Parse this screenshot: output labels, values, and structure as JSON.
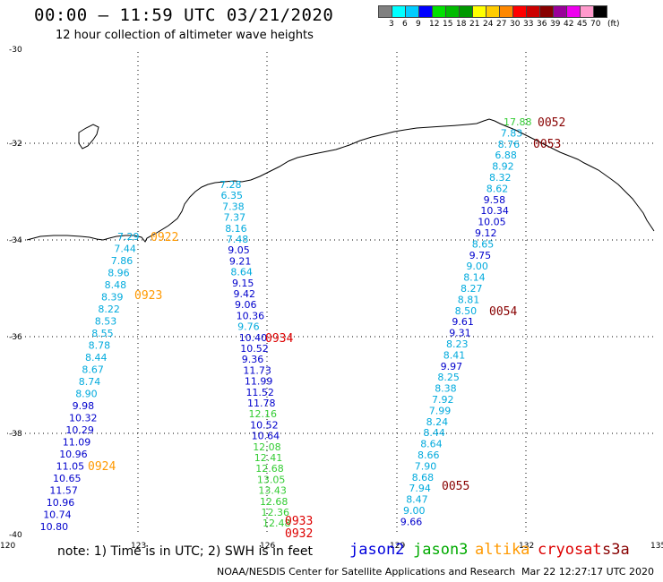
{
  "title": "00:00 – 11:59 UTC 03/21/2020",
  "subtitle": "12 hour collection of altimeter wave heights",
  "legend": {
    "unit": "(ft)",
    "colors": [
      "#808080",
      "#00ffff",
      "#00ccff",
      "#0000ff",
      "#00e000",
      "#00bb00",
      "#009900",
      "#ffff00",
      "#ffcc00",
      "#ff8800",
      "#ff0000",
      "#cc0000",
      "#880000",
      "#990099",
      "#ee00ee",
      "#ff99cc",
      "#000000"
    ],
    "labels": [
      "3",
      "6",
      "9",
      "12",
      "15",
      "18",
      "21",
      "24",
      "27",
      "30",
      "33",
      "36",
      "39",
      "42",
      "45",
      "70"
    ]
  },
  "axes": {
    "y_ticks": [
      "-30",
      "-32",
      "-34",
      "-36",
      "-38",
      "-40"
    ],
    "x_ticks": [
      "120",
      "123",
      "126",
      "129",
      "132",
      "135"
    ]
  },
  "tracks": [
    {
      "color": "#00aadd",
      "values": [
        "7.28",
        "6.35",
        "7.38",
        "7.37",
        "8.16",
        "7.48"
      ]
    },
    {
      "color": "#0000cc",
      "values": [
        "9.05",
        "9.21"
      ]
    },
    {
      "color": "#00aadd",
      "values": [
        "8.64"
      ]
    },
    {
      "color": "#0000cc",
      "values": [
        "9.15",
        "9.42",
        "9.06",
        "10.36"
      ]
    },
    {
      "color": "#00aadd",
      "values": [
        "9.76"
      ]
    },
    {
      "color": "#0000cc",
      "values": [
        "10.40",
        "10.52",
        "9.36",
        "11.73",
        "11.99",
        "11.52",
        "11.78"
      ]
    },
    {
      "color": "#33cc33",
      "values": [
        "12.16"
      ]
    },
    {
      "color": "#0000cc",
      "values": [
        "10.52",
        "10.64"
      ]
    },
    {
      "color": "#33cc33",
      "values": [
        "12.08",
        "12.41",
        "12.68",
        "13.05",
        "13.43",
        "12.68",
        "12.36",
        "12.48"
      ]
    }
  ],
  "track_left": {
    "color_cyan": "#00aadd",
    "color_blue": "#0000cc",
    "values": [
      "7.29",
      "7.44",
      "7.86",
      "8.96",
      "8.48",
      "8.39",
      "8.22",
      "8.53",
      "8.55",
      "8.78",
      "8.44",
      "8.67",
      "8.74",
      "8.90",
      "9.98",
      "10.32",
      "10.29",
      "11.09",
      "10.96",
      "11.05",
      "10.65",
      "11.57",
      "10.96",
      "10.74",
      "10.80"
    ],
    "colors": [
      "c",
      "c",
      "c",
      "c",
      "c",
      "c",
      "c",
      "c",
      "c",
      "c",
      "c",
      "c",
      "c",
      "c",
      "b",
      "b",
      "b",
      "b",
      "b",
      "b",
      "b",
      "b",
      "b",
      "b",
      "b"
    ]
  },
  "track_right": {
    "values": [
      "17.88",
      "7.83",
      "8.76",
      "6.88",
      "8.92",
      "8.32",
      "8.62",
      "9.58",
      "10.34",
      "10.05",
      "9.12",
      "8.65",
      "9.75",
      "9.00",
      "8.14",
      "8.27",
      "8.81",
      "8.50",
      "9.61",
      "9.31",
      "8.23",
      "8.41",
      "9.97",
      "8.25",
      "8.38",
      "7.92",
      "7.99",
      "8.24",
      "8.44",
      "8.64",
      "8.66",
      "7.90",
      "8.68",
      "7.94",
      "8.47",
      "9.00",
      "9.66"
    ],
    "colors": [
      "g",
      "c",
      "c",
      "c",
      "c",
      "c",
      "c",
      "b",
      "b",
      "b",
      "b",
      "c",
      "b",
      "c",
      "c",
      "c",
      "c",
      "c",
      "b",
      "b",
      "c",
      "c",
      "b",
      "c",
      "c",
      "c",
      "c",
      "c",
      "c",
      "c",
      "c",
      "c",
      "c",
      "c",
      "c",
      "c",
      "b"
    ]
  },
  "time_labels": [
    {
      "text": "0922",
      "color": "#ff9900"
    },
    {
      "text": "0923",
      "color": "#ff9900"
    },
    {
      "text": "0924",
      "color": "#ff9900"
    },
    {
      "text": "0934",
      "color": "#dd0000"
    },
    {
      "text": "0933",
      "color": "#dd0000"
    },
    {
      "text": "0932",
      "color": "#dd0000"
    },
    {
      "text": "0052",
      "color": "#880000"
    },
    {
      "text": "0053",
      "color": "#880000"
    },
    {
      "text": "0054",
      "color": "#880000"
    },
    {
      "text": "0055",
      "color": "#880000"
    }
  ],
  "note": "note:  1) Time is in UTC;  2) SWH is in feet",
  "satellites": [
    {
      "name": "jason2",
      "color": "#0000dd"
    },
    {
      "name": "jason3",
      "color": "#00aa00"
    },
    {
      "name": "altika",
      "color": "#ff9900"
    },
    {
      "name": "cryosat",
      "color": "#dd0000"
    },
    {
      "name": "s3a",
      "color": "#880000"
    }
  ],
  "footer_left": "NOAA/NESDIS Center for Satellite Applications and Research",
  "footer_right": "Mar 22 12:27:17 UTC 2020"
}
